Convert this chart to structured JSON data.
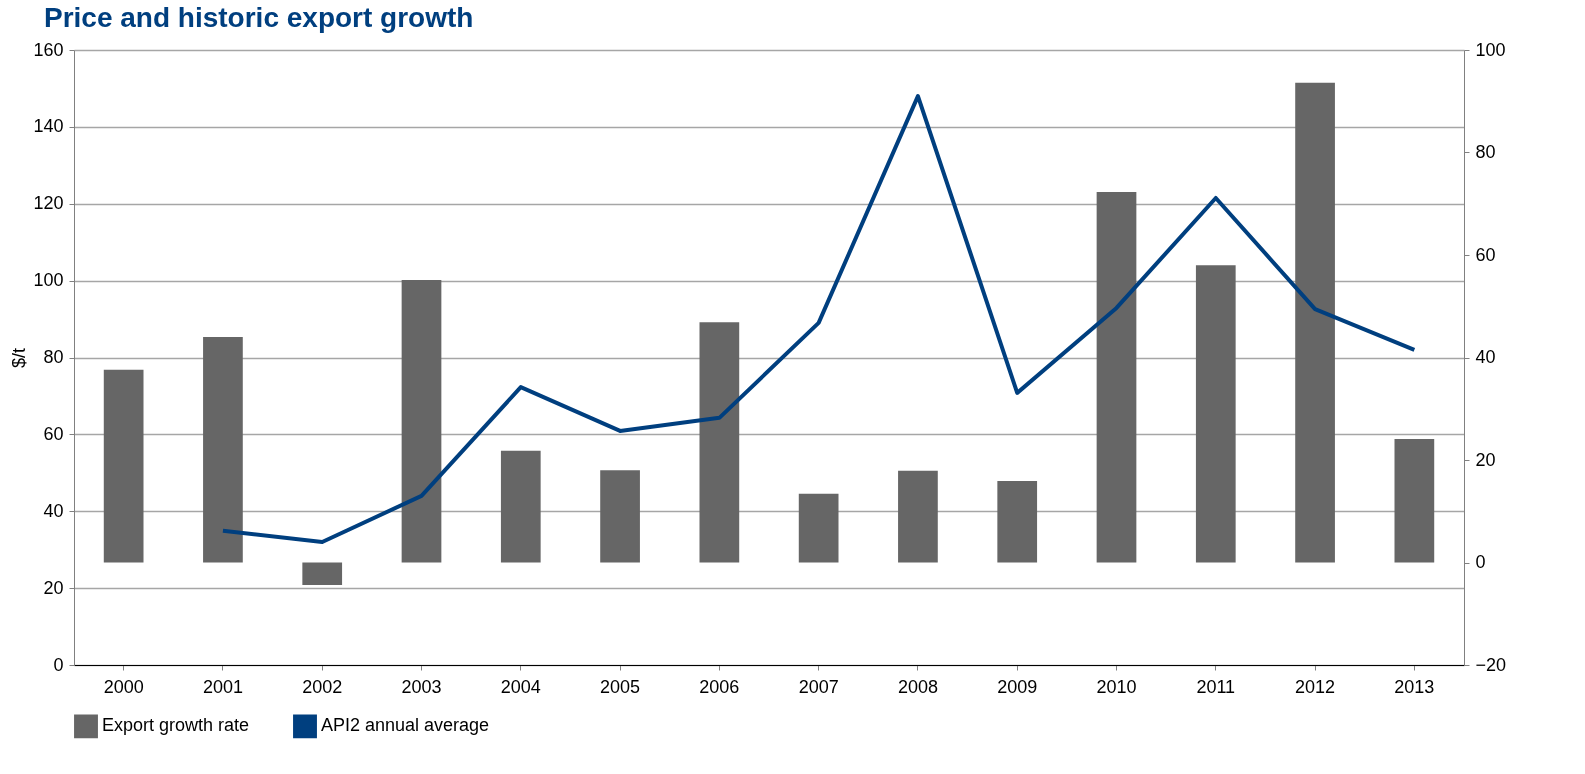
{
  "chart_data": {
    "type": "bar",
    "title": "Price and historic export growth",
    "ylabel": "$/t",
    "categories": [
      "2000",
      "2001",
      "2002",
      "2003",
      "2004",
      "2005",
      "2006",
      "2007",
      "2008",
      "2009",
      "2010",
      "2011",
      "2012",
      "2013"
    ],
    "series": [
      {
        "name": "Export growth rate",
        "axis": "y2",
        "color": "#666666",
        "values": [
          37.6,
          44,
          -4.4,
          55.1,
          21.8,
          18,
          46.9,
          13.4,
          17.9,
          15.9,
          72.3,
          58,
          93.6,
          24.1
        ]
      },
      {
        "name": "API2 annual average",
        "type": "line",
        "color": "#003f7f",
        "values": [
          null,
          34.9,
          32,
          44,
          72.3,
          60.9,
          64.3,
          89,
          148,
          70.8,
          92.9,
          121.5,
          92.6,
          82
        ]
      }
    ],
    "ylim": [
      0,
      160
    ],
    "yticks": [
      0,
      20,
      40,
      60,
      80,
      100,
      120,
      140,
      160
    ],
    "y2lim": [
      -20,
      100
    ],
    "y2ticks": [
      -20,
      0,
      20,
      40,
      60,
      80,
      100
    ],
    "grid": "y",
    "legend": "bottom"
  }
}
